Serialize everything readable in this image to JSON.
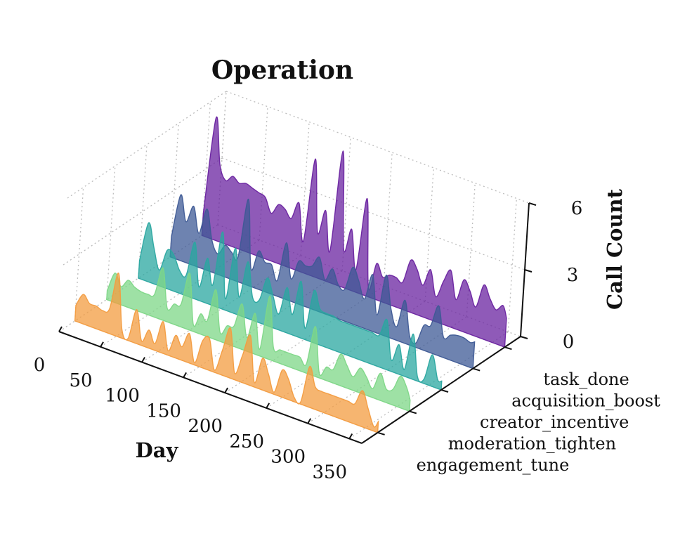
{
  "chart_data": {
    "type": "ridgeline",
    "title": "Operation",
    "xlabel": "Day",
    "ylabel": "",
    "zlabel": "Call Count",
    "xlim": [
      0,
      365
    ],
    "zlim": [
      0,
      6
    ],
    "xticks": [
      "0",
      "50",
      "100",
      "150",
      "200",
      "250",
      "300",
      "350"
    ],
    "zticks": [
      "0",
      "3",
      "6"
    ],
    "categories": [
      "engagement_tune",
      "moderation_tighten",
      "creator_incentive",
      "acquisition_boost",
      "task_done"
    ],
    "series": [
      {
        "name": "engagement_tune",
        "color": "#f39c40",
        "x": [
          0,
          8,
          16,
          24,
          32,
          40,
          48,
          56,
          64,
          72,
          80,
          88,
          96,
          104,
          112,
          120,
          128,
          136,
          144,
          152,
          160,
          168,
          176,
          184,
          192,
          200,
          208,
          216,
          224,
          232,
          240,
          248,
          256,
          264,
          272,
          280,
          288,
          296,
          304,
          312,
          320,
          328,
          336,
          344,
          352,
          360,
          365
        ],
        "values": [
          0.7,
          1.3,
          1.0,
          1.0,
          0.9,
          1.1,
          2.8,
          0.4,
          0.1,
          1.5,
          0.2,
          0.8,
          0.3,
          1.4,
          0.2,
          1.0,
          0.6,
          1.3,
          0.1,
          1.2,
          1.4,
          0.1,
          1.1,
          2.2,
          0.3,
          1.2,
          2.2,
          0.2,
          1.4,
          0.8,
          0.1,
          1.2,
          0.9,
          0.2,
          0.1,
          1.8,
          1.0,
          0.9,
          0.9,
          0.9,
          0.9,
          0.9,
          0.9,
          1.6,
          0.9,
          0.2,
          0.5
        ]
      },
      {
        "name": "moderation_tighten",
        "color": "#7ed787",
        "x": [
          0,
          8,
          16,
          24,
          32,
          40,
          48,
          56,
          64,
          72,
          80,
          88,
          96,
          104,
          112,
          120,
          128,
          136,
          144,
          152,
          160,
          168,
          176,
          184,
          192,
          200,
          208,
          216,
          224,
          232,
          240,
          248,
          256,
          264,
          272,
          280,
          288,
          296,
          304,
          312,
          320,
          328,
          336,
          344,
          352,
          360,
          365
        ],
        "values": [
          0.4,
          1.3,
          0.8,
          1.2,
          1.0,
          0.9,
          0.9,
          1.0,
          2.3,
          0.6,
          0.9,
          1.0,
          2.5,
          0.3,
          0.9,
          0.7,
          2.2,
          0.4,
          0.8,
          0.9,
          2.0,
          0.6,
          1.8,
          0.3,
          2.8,
          0.6,
          0.6,
          0.6,
          0.6,
          0.6,
          0.4,
          2.2,
          0.2,
          0.6,
          0.6,
          1.4,
          1.0,
          0.6,
          1.1,
          0.8,
          0.4,
          1.2,
          0.6,
          0.7,
          1.4,
          1.0,
          0.5
        ]
      },
      {
        "name": "creator_incentive",
        "color": "#2aa7a0",
        "x": [
          0,
          8,
          16,
          24,
          32,
          40,
          48,
          56,
          64,
          72,
          80,
          88,
          96,
          104,
          112,
          120,
          128,
          136,
          144,
          152,
          160,
          168,
          176,
          184,
          192,
          200,
          208,
          216,
          224,
          232,
          240,
          248,
          256,
          264,
          272,
          280,
          288,
          296,
          304,
          312,
          320,
          328,
          336,
          344,
          352,
          360,
          365
        ],
        "values": [
          0.8,
          2.6,
          1.6,
          0.7,
          1.7,
          1.6,
          1.0,
          0.9,
          2.5,
          0.6,
          2.0,
          0.9,
          3.4,
          0.5,
          2.9,
          0.8,
          2.5,
          1.0,
          1.0,
          2.1,
          1.4,
          0.7,
          2.0,
          0.9,
          2.5,
          0.5,
          2.3,
          1.6,
          1.5,
          1.5,
          1.4,
          1.4,
          1.4,
          1.4,
          1.4,
          1.4,
          1.4,
          2.2,
          0.5,
          1.3,
          0.3,
          2.0,
          0.2,
          0.2,
          1.4,
          0.4,
          0.4
        ]
      },
      {
        "name": "acquisition_boost",
        "color": "#3e5a95",
        "x": [
          0,
          8,
          16,
          24,
          32,
          40,
          48,
          56,
          64,
          72,
          80,
          88,
          96,
          104,
          112,
          120,
          128,
          136,
          144,
          152,
          160,
          168,
          176,
          184,
          192,
          200,
          208,
          216,
          224,
          232,
          240,
          248,
          256,
          264,
          272,
          280,
          288,
          296,
          304,
          312,
          320,
          328,
          336,
          344,
          352,
          360,
          365
        ],
        "values": [
          0.9,
          2.9,
          1.8,
          2.6,
          1.5,
          2.7,
          1.4,
          0.9,
          1.4,
          1.2,
          1.1,
          3.8,
          0.8,
          1.7,
          1.3,
          1.3,
          0.7,
          2.5,
          1.0,
          1.9,
          1.8,
          1.9,
          2.4,
          1.5,
          2.1,
          1.5,
          1.4,
          2.5,
          2.0,
          1.3,
          2.5,
          0.8,
          2.7,
          1.3,
          0.6,
          1.9,
          0.4,
          0.2,
          1.1,
          1.2,
          2.2,
          0.9,
          1.1,
          1.2,
          1.2,
          1.1,
          1.2
        ]
      },
      {
        "name": "task_done",
        "color": "#6a23a0",
        "x": [
          0,
          8,
          16,
          24,
          32,
          40,
          48,
          56,
          64,
          72,
          80,
          88,
          96,
          104,
          112,
          120,
          128,
          136,
          144,
          152,
          160,
          168,
          176,
          184,
          192,
          200,
          208,
          216,
          224,
          232,
          240,
          248,
          256,
          264,
          272,
          280,
          288,
          296,
          304,
          312,
          320,
          328,
          336,
          344,
          352,
          360,
          365
        ],
        "values": [
          1.0,
          5.4,
          3.4,
          2.8,
          3.1,
          2.9,
          3.0,
          2.9,
          2.8,
          2.7,
          2.1,
          2.6,
          2.5,
          2.2,
          3.0,
          1.4,
          5.2,
          2.0,
          3.1,
          1.4,
          6.0,
          1.7,
          2.7,
          1.0,
          4.3,
          0.4,
          1.6,
          1.1,
          1.3,
          1.3,
          1.2,
          2.3,
          2.0,
          1.4,
          2.2,
          1.1,
          1.9,
          2.5,
          1.3,
          2.3,
          1.9,
          1.3,
          2.4,
          1.9,
          1.5,
          1.8,
          1.3
        ]
      }
    ]
  }
}
